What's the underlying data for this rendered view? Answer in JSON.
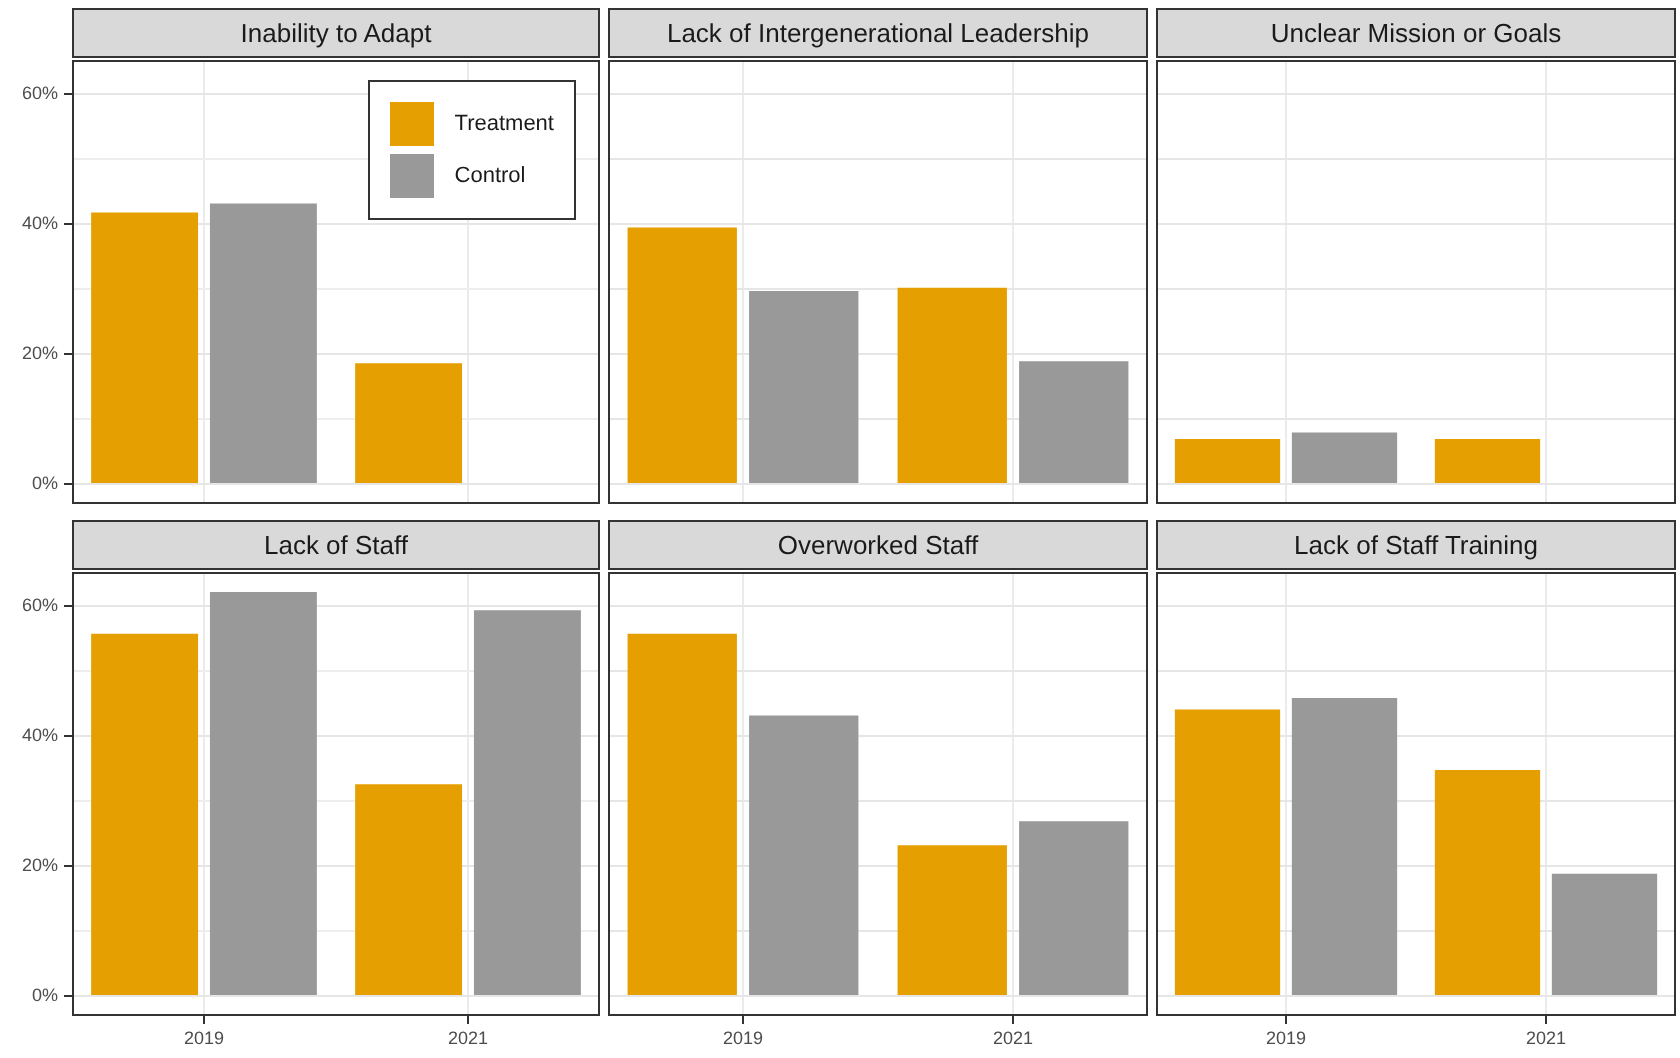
{
  "chart_data": [
    {
      "type": "bar",
      "title": "Inability to Adapt",
      "categories": [
        "2019",
        "2021"
      ],
      "series": [
        {
          "name": "Treatment",
          "color": "#e69f00",
          "values": [
            41.8,
            18.6
          ]
        },
        {
          "name": "Control",
          "color": "#999999",
          "values": [
            43.2,
            null
          ]
        }
      ],
      "ylim": [
        -3.1,
        65.3
      ],
      "yticks": [
        {
          "value": 0,
          "label": "0%"
        },
        {
          "value": 10,
          "label": null
        },
        {
          "value": 20,
          "label": "20%"
        },
        {
          "value": 30,
          "label": null
        },
        {
          "value": 40,
          "label": "40%"
        },
        {
          "value": 50,
          "label": null
        },
        {
          "value": 60,
          "label": "60%"
        }
      ],
      "grid": true,
      "tick_labels": "y",
      "legend": "top right"
    },
    {
      "type": "bar",
      "title": "Lack of Intergenerational Leadership",
      "categories": [
        "2019",
        "2021"
      ],
      "series": [
        {
          "color": "#e69f00",
          "values": [
            39.5,
            30.2
          ]
        },
        {
          "color": "#999999",
          "values": [
            29.7,
            18.9
          ]
        }
      ],
      "ylim": [
        -3.1,
        65.3
      ],
      "yticks": [
        0,
        10,
        20,
        30,
        40,
        50,
        60
      ],
      "grid": true,
      "tick_labels": false
    },
    {
      "type": "bar",
      "title": "Unclear Mission or Goals",
      "categories": [
        "2019",
        "2021"
      ],
      "series": [
        {
          "color": "#e69f00",
          "values": [
            6.9,
            6.9
          ]
        },
        {
          "color": "#999999",
          "values": [
            7.9,
            null
          ]
        }
      ],
      "ylim": [
        -3.1,
        65.3
      ],
      "yticks": [
        0,
        10,
        20,
        30,
        40,
        50,
        60
      ],
      "grid": true,
      "tick_labels": false
    },
    {
      "type": "bar",
      "title": "Lack of Staff",
      "categories": [
        "2019",
        "2021"
      ],
      "series": [
        {
          "color": "#e69f00",
          "values": [
            55.8,
            32.6
          ]
        },
        {
          "color": "#999999",
          "values": [
            62.2,
            59.4
          ]
        }
      ],
      "ylim": [
        -3.1,
        65.3
      ],
      "yticks": [
        {
          "value": 0,
          "label": "0%"
        },
        {
          "value": 10,
          "label": null
        },
        {
          "value": 20,
          "label": "20%"
        },
        {
          "value": 30,
          "label": null
        },
        {
          "value": 40,
          "label": "40%"
        },
        {
          "value": 50,
          "label": null
        },
        {
          "value": 60,
          "label": "60%"
        }
      ],
      "grid": true
    },
    {
      "type": "bar",
      "title": "Overworked Staff",
      "categories": [
        "2019",
        "2021"
      ],
      "series": [
        {
          "color": "#e69f00",
          "values": [
            55.8,
            23.2
          ]
        },
        {
          "color": "#999999",
          "values": [
            43.2,
            26.9
          ]
        }
      ],
      "ylim": [
        -3.1,
        65.3
      ],
      "yticks": [
        0,
        10,
        20,
        30,
        40,
        50,
        60
      ],
      "grid": true,
      "tick_labels": "x"
    },
    {
      "type": "bar",
      "title": "Lack of Staff Training",
      "categories": [
        "2019",
        "2021"
      ],
      "series": [
        {
          "color": "#e69f00",
          "values": [
            44.1,
            34.8
          ]
        },
        {
          "color": "#999999",
          "values": [
            45.9,
            18.8
          ]
        }
      ],
      "ylim": [
        -3.1,
        65.3
      ],
      "yticks": [
        0,
        10,
        20,
        30,
        40,
        50,
        60
      ],
      "grid": true,
      "tick_labels": "x"
    }
  ]
}
